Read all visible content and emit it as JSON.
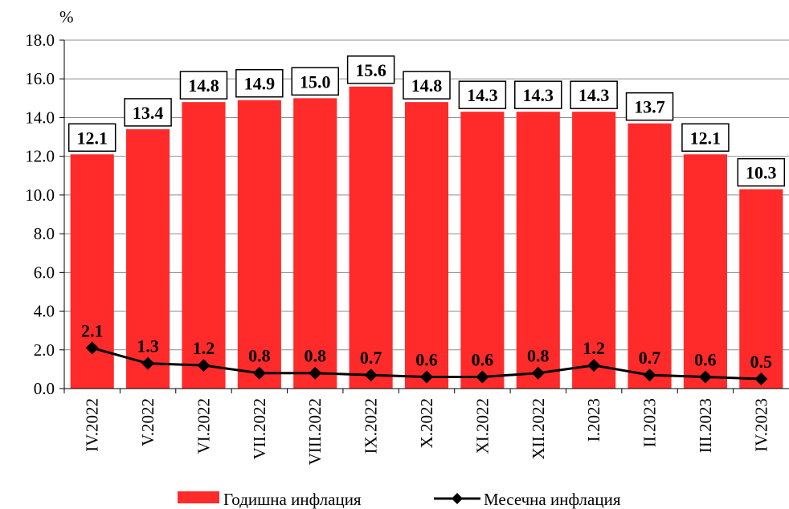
{
  "chart_data": {
    "type": "bar",
    "unit_label": "%",
    "categories": [
      "IV.2022",
      "V.2022",
      "VI.2022",
      "VII.2022",
      "VIII.2022",
      "IX.2022",
      "X.2022",
      "XI.2022",
      "XII.2022",
      "I.2023",
      "II.2023",
      "III.2023",
      "IV.2023"
    ],
    "series": [
      {
        "name": "Годишна инфлация",
        "kind": "bar",
        "color": "#ff2a2a",
        "values": [
          12.1,
          13.4,
          14.8,
          14.9,
          15.0,
          15.6,
          14.8,
          14.3,
          14.3,
          14.3,
          13.7,
          12.1,
          10.3
        ],
        "labels": [
          "12.1",
          "13.4",
          "14.8",
          "14.9",
          "15.0",
          "15.6",
          "14.8",
          "14.3",
          "14.3",
          "14.3",
          "13.7",
          "12.1",
          "10.3"
        ]
      },
      {
        "name": "Месечна инфлация",
        "kind": "line",
        "color": "#000000",
        "marker": "diamond",
        "values": [
          2.1,
          1.3,
          1.2,
          0.8,
          0.8,
          0.7,
          0.6,
          0.6,
          0.8,
          1.2,
          0.7,
          0.6,
          0.5
        ],
        "labels": [
          "2.1",
          "1.3",
          "1.2",
          "0.8",
          "0.8",
          "0.7",
          "0.6",
          "0.6",
          "0.8",
          "1.2",
          "0.7",
          "0.6",
          "0.5"
        ]
      }
    ],
    "ylim": [
      0,
      18
    ],
    "yticks": [
      "0.0",
      "2.0",
      "4.0",
      "6.0",
      "8.0",
      "10.0",
      "12.0",
      "14.0",
      "16.0",
      "18.0"
    ],
    "grid": true,
    "legend_position": "bottom"
  }
}
